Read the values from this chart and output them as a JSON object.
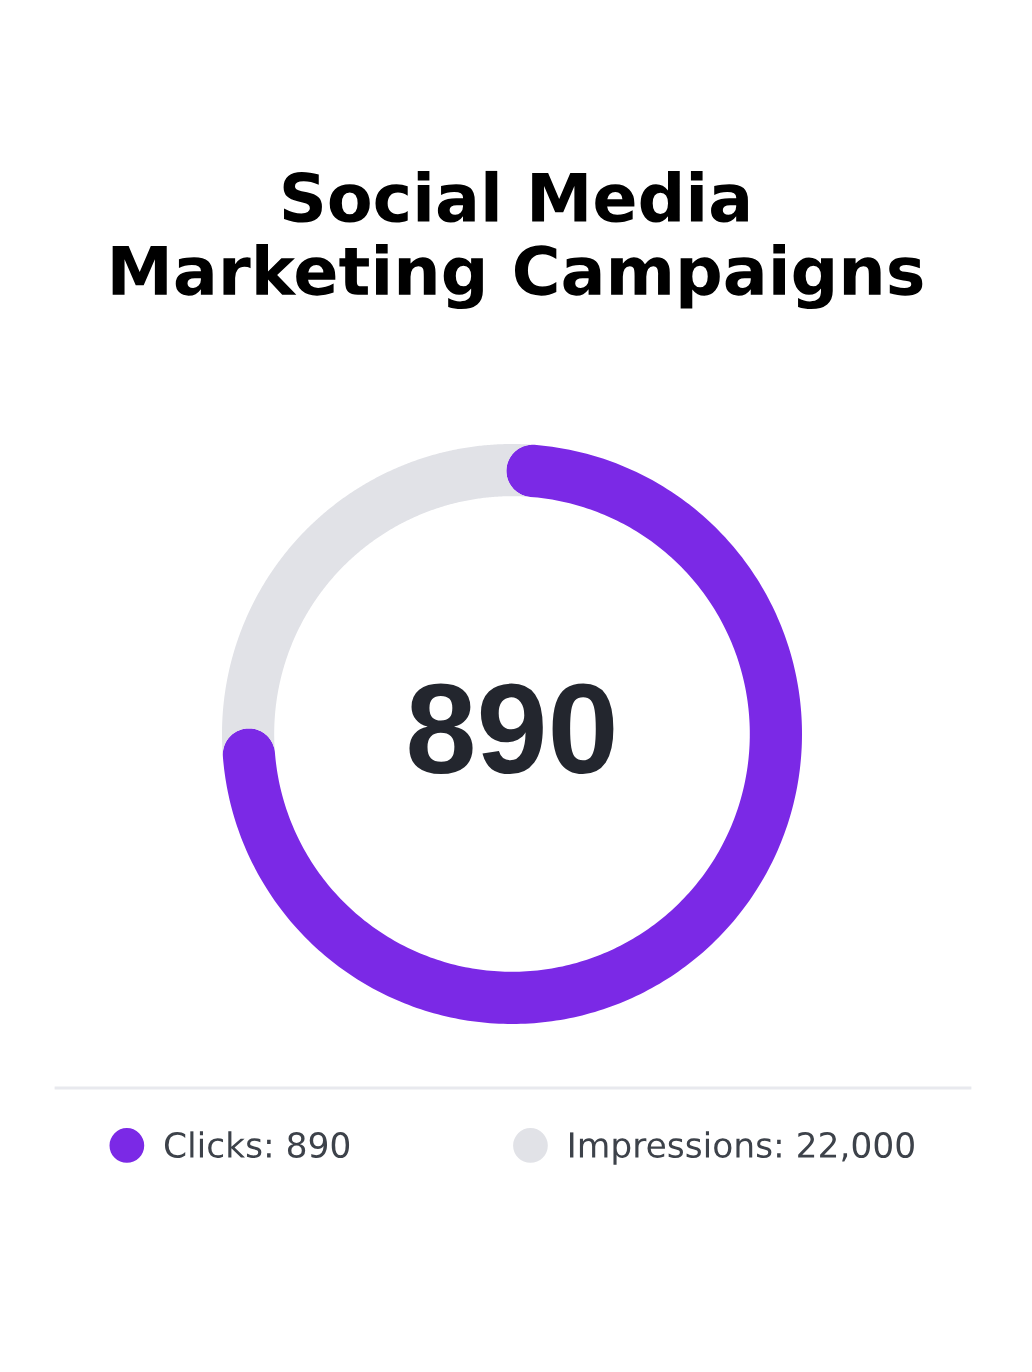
{
  "chart_data": {
    "type": "donut",
    "title": "Social Media\nMarketing Campaigns",
    "categories": [
      "Clicks: 890",
      "Impressions: 22,000"
    ],
    "values": [
      75,
      25
    ],
    "colors": [
      "#7b29e6",
      "#e1e2e7"
    ],
    "annotations": [
      "890"
    ],
    "legend": "bottom"
  }
}
